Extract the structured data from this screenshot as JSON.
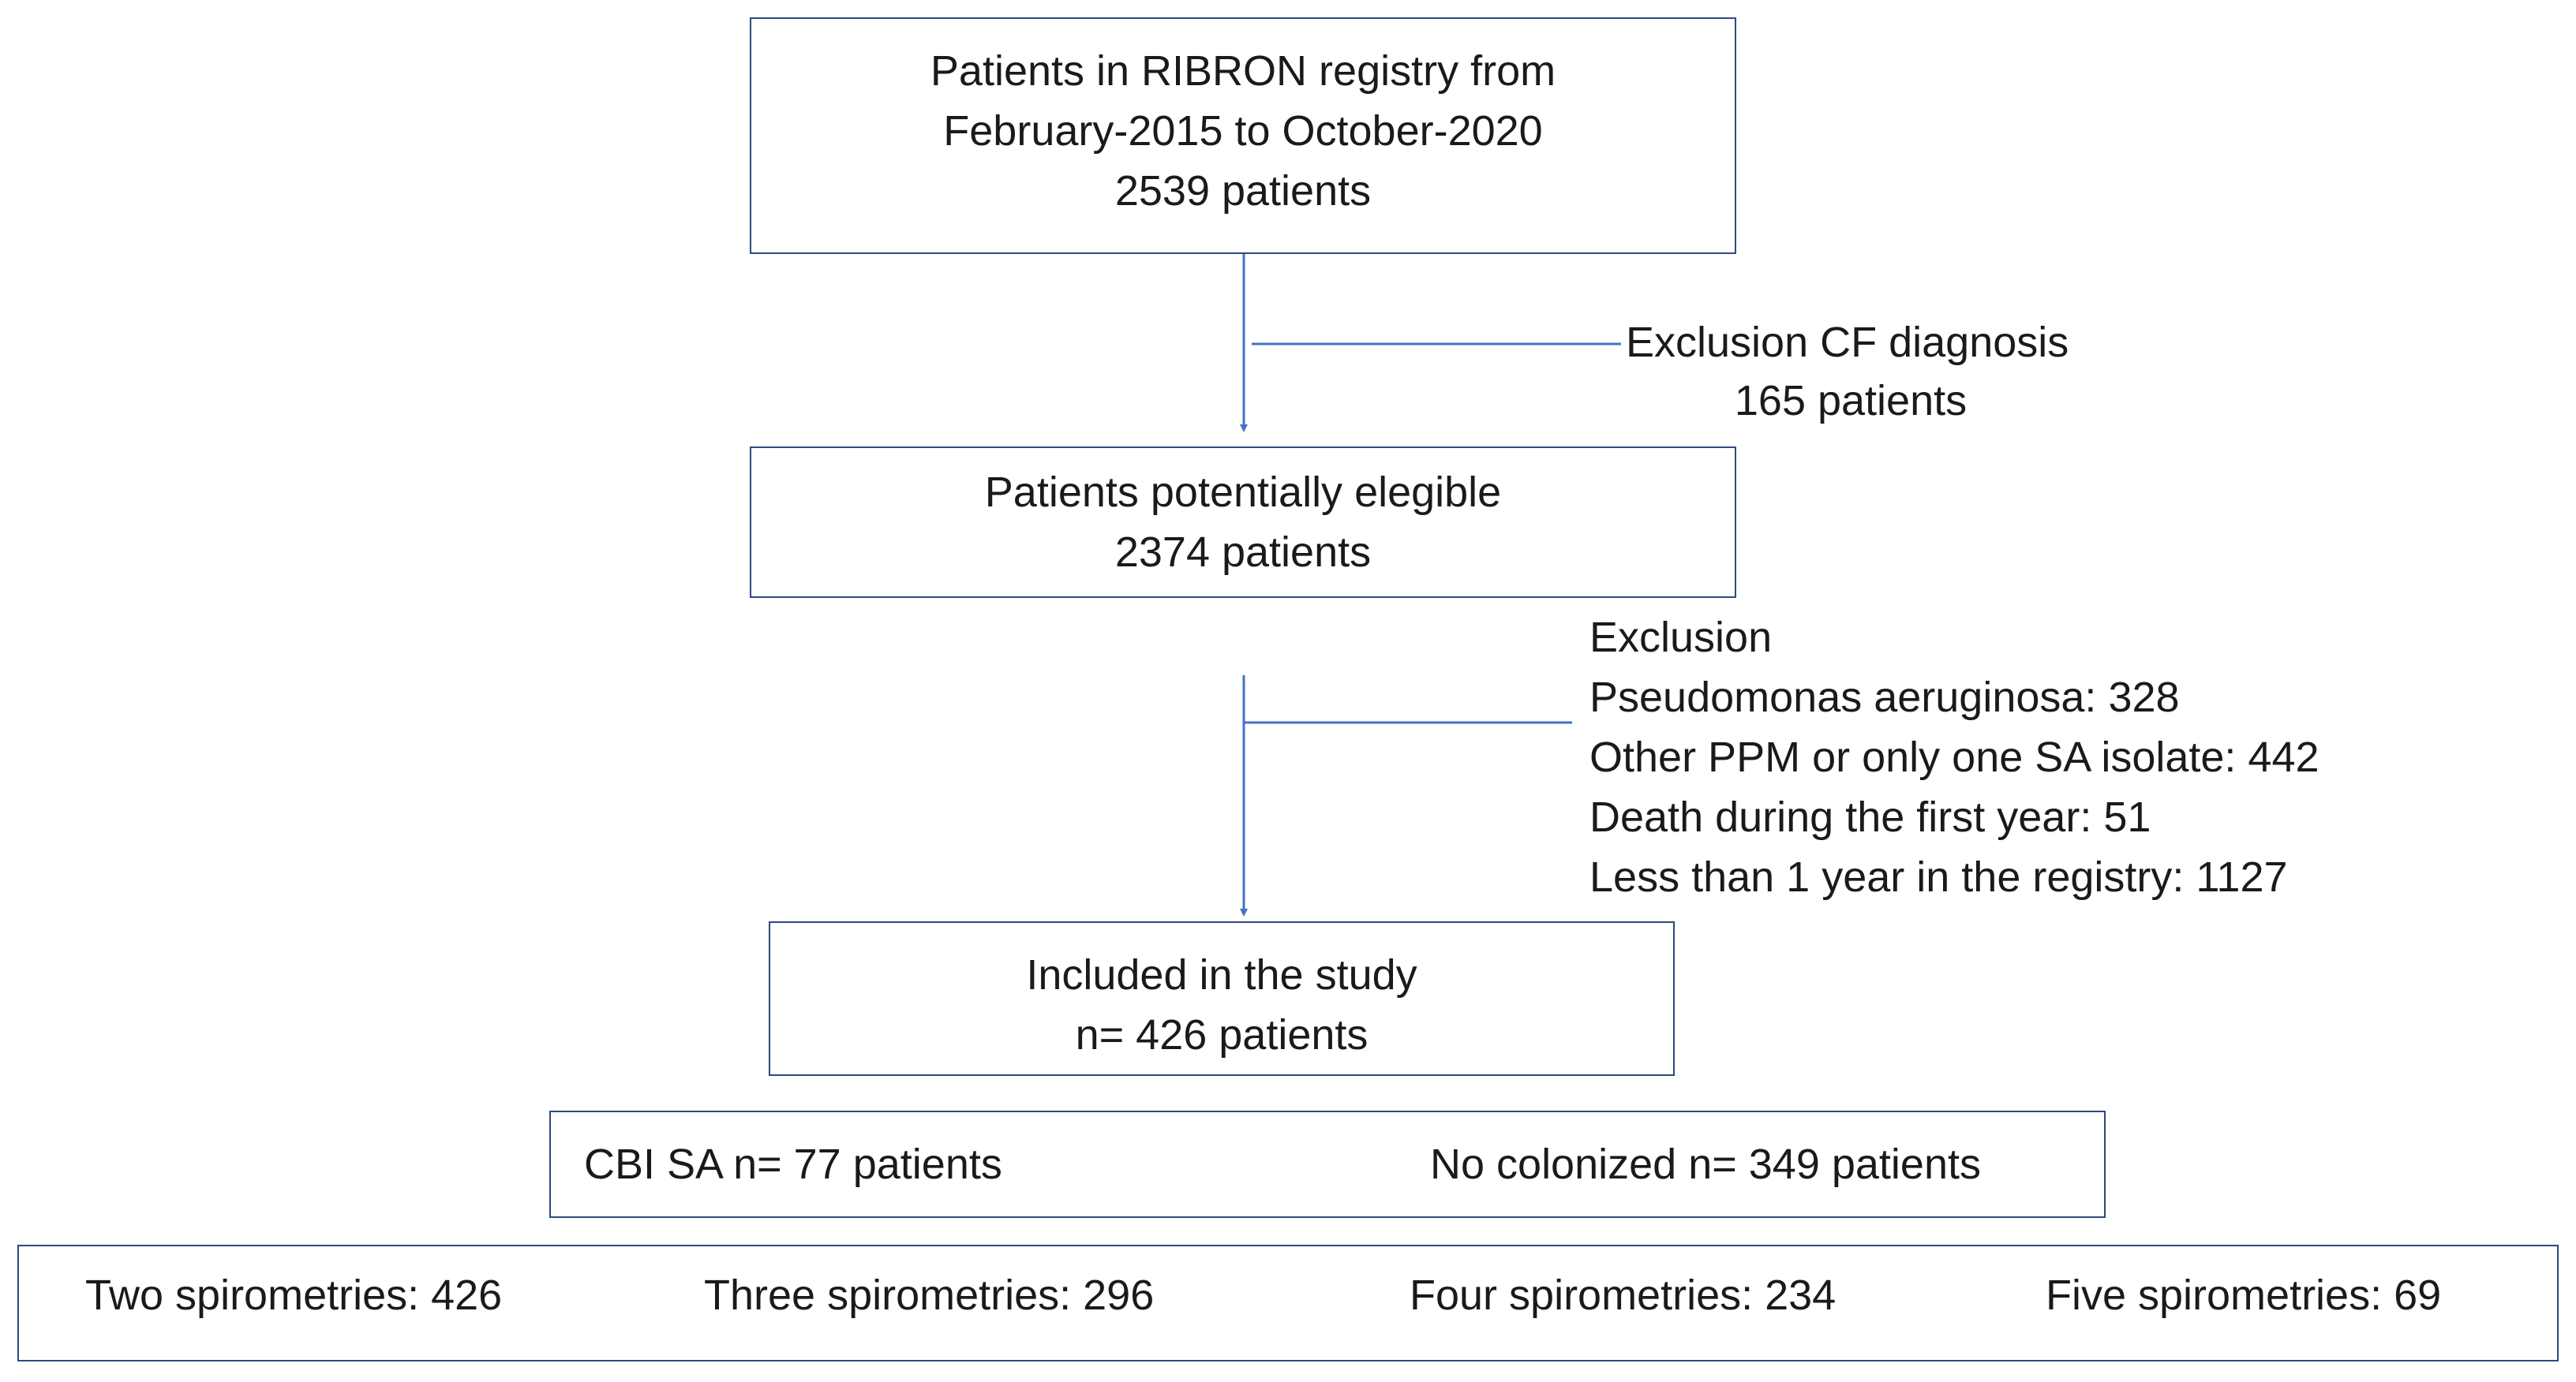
{
  "box1": {
    "line1": "Patients in RIBRON registry from",
    "line2": "February-2015 to October-2020",
    "line3": "2539 patients"
  },
  "exclusion1": {
    "line1": "Exclusion CF diagnosis",
    "line2": "165 patients"
  },
  "box2": {
    "line1": "Patients potentially elegible",
    "line2": "2374 patients"
  },
  "exclusion2": {
    "title": "Exclusion",
    "items": [
      "Pseudomonas aeruginosa:  328",
      "Other PPM or only one SA isolate: 442",
      "Death during the first year: 51",
      "Less than 1 year in the registry:  1127"
    ]
  },
  "box3": {
    "line1": "Included in the study",
    "line2": "n= 426 patients"
  },
  "box4": {
    "left": "CBI SA n= 77 patients",
    "right": "No colonized n= 349 patients"
  },
  "box5": {
    "items": [
      "Two spirometries: 426",
      "Three spirometries: 296",
      "Four spirometries: 234",
      "Five spirometries: 69"
    ]
  },
  "colors": {
    "box_border": "#2e4a7d",
    "arrow": "#4472c4"
  }
}
